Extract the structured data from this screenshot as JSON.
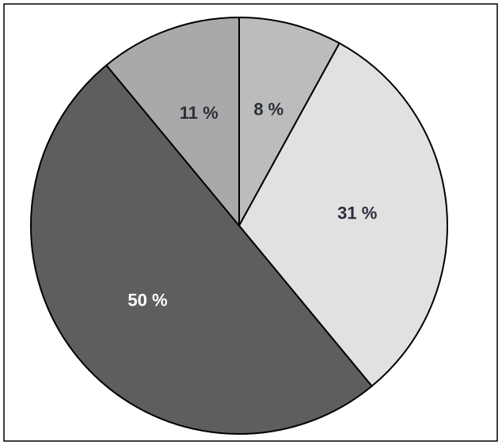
{
  "chart_data": {
    "type": "pie",
    "values": [
      8,
      31,
      50,
      11
    ],
    "value_labels": [
      "8 %",
      "31 %",
      "50 %",
      "11 %"
    ],
    "colors": [
      "#bcbcbc",
      "#e1e1e1",
      "#5e5e5e",
      "#a9a9a9"
    ]
  }
}
